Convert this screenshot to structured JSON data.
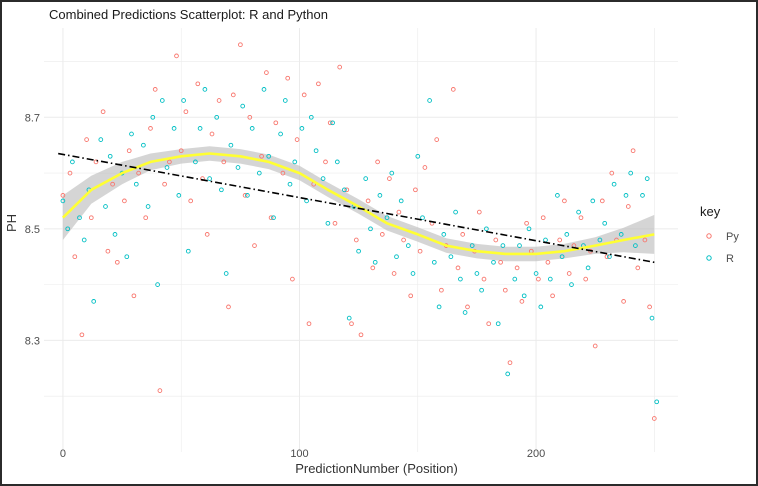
{
  "chart_data": {
    "type": "scatter",
    "title": "Combined Predictions Scatterplot: R and Python",
    "xlabel": "PredictionNumber (Position)",
    "ylabel": "PH",
    "xlim": [
      -8,
      260
    ],
    "ylim": [
      8.1,
      8.86
    ],
    "x_ticks": [
      0,
      100,
      200
    ],
    "y_ticks": [
      8.3,
      8.5,
      8.7
    ],
    "grid": true,
    "legend": {
      "title": "key",
      "position": "right",
      "entries": [
        "Py",
        "R"
      ]
    },
    "colors": {
      "Py": "#F8766D",
      "R": "#00BFC4",
      "smooth": "#FFFF33",
      "band": "#BEBEBE",
      "trend": "#000000"
    },
    "series": [
      {
        "name": "Py",
        "x": [
          0,
          3,
          5,
          8,
          10,
          12,
          14,
          17,
          19,
          21,
          23,
          26,
          28,
          30,
          32,
          35,
          37,
          39,
          41,
          43,
          45,
          48,
          50,
          52,
          54,
          57,
          59,
          61,
          63,
          66,
          68,
          70,
          72,
          75,
          77,
          79,
          81,
          84,
          86,
          88,
          90,
          93,
          95,
          97,
          99,
          102,
          104,
          106,
          108,
          111,
          113,
          115,
          117,
          120,
          122,
          124,
          126,
          129,
          131,
          133,
          135,
          138,
          140,
          142,
          144,
          147,
          149,
          151,
          153,
          156,
          158,
          160,
          162,
          165,
          167,
          169,
          171,
          174,
          176,
          178,
          180,
          183,
          185,
          187,
          189,
          192,
          194,
          196,
          198,
          201,
          203,
          205,
          207,
          210,
          212,
          214,
          216,
          219,
          221,
          223,
          225,
          228,
          230,
          232,
          234,
          237,
          239,
          241,
          243,
          246,
          248,
          250
        ],
        "y": [
          8.56,
          8.6,
          8.45,
          8.31,
          8.66,
          8.52,
          8.62,
          8.71,
          8.46,
          8.58,
          8.44,
          8.55,
          8.64,
          8.38,
          8.6,
          8.52,
          8.68,
          8.75,
          8.21,
          8.58,
          8.62,
          8.81,
          8.64,
          8.71,
          8.55,
          8.76,
          8.59,
          8.49,
          8.67,
          8.73,
          8.62,
          8.36,
          8.74,
          8.83,
          8.56,
          8.7,
          8.47,
          8.63,
          8.78,
          8.52,
          8.69,
          8.6,
          8.77,
          8.41,
          8.66,
          8.74,
          8.33,
          8.58,
          8.76,
          8.62,
          8.69,
          8.51,
          8.79,
          8.57,
          8.33,
          8.48,
          8.31,
          8.55,
          8.43,
          8.62,
          8.49,
          8.59,
          8.42,
          8.53,
          8.48,
          8.38,
          8.57,
          8.46,
          8.61,
          8.51,
          8.66,
          8.39,
          8.47,
          8.75,
          8.43,
          8.49,
          8.36,
          8.46,
          8.53,
          8.41,
          8.33,
          8.48,
          8.44,
          8.39,
          8.26,
          8.43,
          8.37,
          8.51,
          8.46,
          8.41,
          8.52,
          8.44,
          8.38,
          8.48,
          8.55,
          8.42,
          8.47,
          8.52,
          8.41,
          8.46,
          8.29,
          8.55,
          8.45,
          8.6,
          8.48,
          8.37,
          8.54,
          8.64,
          8.43,
          8.48,
          8.36,
          8.16
        ]
      },
      {
        "name": "R",
        "x": [
          0,
          2,
          4,
          7,
          9,
          11,
          13,
          16,
          18,
          20,
          22,
          25,
          27,
          29,
          31,
          34,
          36,
          38,
          40,
          42,
          44,
          47,
          49,
          51,
          53,
          56,
          58,
          60,
          62,
          65,
          67,
          69,
          71,
          74,
          76,
          78,
          80,
          83,
          85,
          87,
          89,
          92,
          94,
          96,
          98,
          101,
          103,
          105,
          107,
          110,
          112,
          114,
          116,
          119,
          121,
          123,
          125,
          128,
          130,
          132,
          134,
          137,
          139,
          141,
          143,
          146,
          148,
          150,
          152,
          155,
          157,
          159,
          161,
          164,
          166,
          168,
          170,
          173,
          175,
          177,
          179,
          182,
          184,
          186,
          188,
          191,
          193,
          195,
          197,
          200,
          202,
          204,
          206,
          209,
          211,
          213,
          215,
          218,
          220,
          222,
          224,
          227,
          229,
          231,
          233,
          236,
          238,
          240,
          242,
          245,
          247,
          249,
          251
        ],
        "y": [
          8.55,
          8.5,
          8.62,
          8.52,
          8.48,
          8.57,
          8.37,
          8.66,
          8.54,
          8.63,
          8.49,
          8.6,
          8.45,
          8.67,
          8.58,
          8.65,
          8.54,
          8.7,
          8.4,
          8.73,
          8.61,
          8.68,
          8.56,
          8.73,
          8.46,
          8.62,
          8.68,
          8.75,
          8.59,
          8.7,
          8.57,
          8.42,
          8.65,
          8.61,
          8.72,
          8.56,
          8.68,
          8.6,
          8.75,
          8.63,
          8.52,
          8.67,
          8.73,
          8.58,
          8.62,
          8.68,
          8.55,
          8.7,
          8.64,
          8.59,
          8.51,
          8.69,
          8.62,
          8.57,
          8.34,
          8.54,
          8.46,
          8.59,
          8.5,
          8.44,
          8.56,
          8.52,
          8.6,
          8.45,
          8.55,
          8.47,
          8.42,
          8.63,
          8.52,
          8.73,
          8.44,
          8.36,
          8.49,
          8.45,
          8.53,
          8.41,
          8.35,
          8.47,
          8.42,
          8.39,
          8.5,
          8.44,
          8.33,
          8.47,
          8.24,
          8.41,
          8.47,
          8.38,
          8.5,
          8.42,
          8.36,
          8.48,
          8.41,
          8.56,
          8.45,
          8.49,
          8.4,
          8.53,
          8.47,
          8.43,
          8.55,
          8.48,
          8.51,
          8.45,
          8.58,
          8.49,
          8.56,
          8.6,
          8.47,
          8.56,
          8.59,
          8.34,
          8.19
        ]
      }
    ],
    "smooth_line": {
      "x": [
        0,
        12,
        25,
        37,
        50,
        62,
        75,
        87,
        100,
        112,
        125,
        137,
        150,
        162,
        175,
        187,
        200,
        212,
        225,
        237,
        250
      ],
      "y": [
        8.52,
        8.57,
        8.6,
        8.62,
        8.63,
        8.635,
        8.63,
        8.62,
        8.6,
        8.57,
        8.54,
        8.51,
        8.49,
        8.47,
        8.46,
        8.455,
        8.455,
        8.46,
        8.47,
        8.48,
        8.49
      ],
      "band_half_width": [
        0.04,
        0.025,
        0.02,
        0.015,
        0.013,
        0.013,
        0.013,
        0.013,
        0.013,
        0.013,
        0.013,
        0.013,
        0.013,
        0.013,
        0.013,
        0.013,
        0.013,
        0.013,
        0.015,
        0.022,
        0.035
      ]
    },
    "trend_line": {
      "x": [
        -2,
        250
      ],
      "y": [
        8.635,
        8.44
      ]
    }
  }
}
